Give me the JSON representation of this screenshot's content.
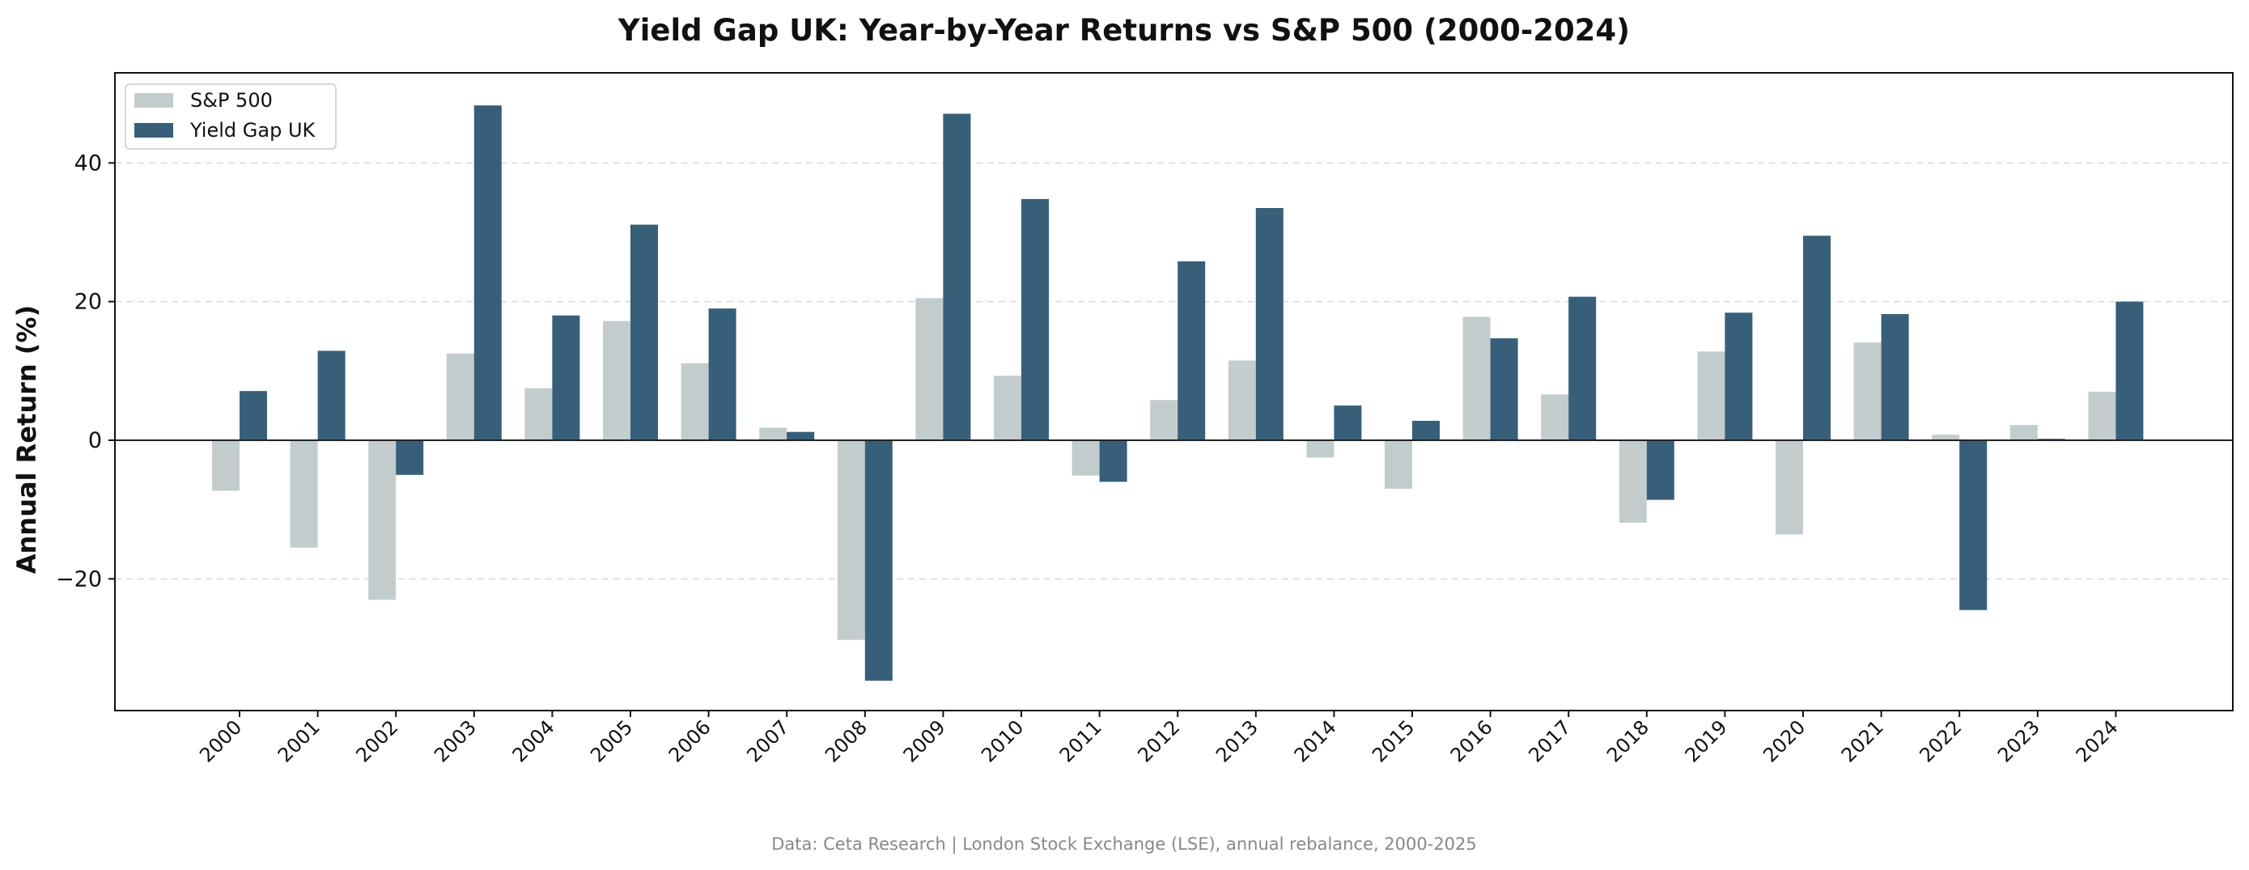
{
  "chart_data": {
    "type": "bar",
    "title": "Yield Gap UK: Year-by-Year Returns vs S&P 500 (2000-2024)",
    "xlabel": "",
    "ylabel": "Annual Return (%)",
    "ylim": [
      -39,
      53
    ],
    "yticks": [
      -20,
      0,
      20,
      40
    ],
    "ytick_labels": [
      "−20",
      "0",
      "20",
      "40"
    ],
    "grid": "horizontal dashed",
    "legend": "top-left",
    "categories": [
      "2000",
      "2001",
      "2002",
      "2003",
      "2004",
      "2005",
      "2006",
      "2007",
      "2008",
      "2009",
      "2010",
      "2011",
      "2012",
      "2013",
      "2014",
      "2015",
      "2016",
      "2017",
      "2018",
      "2019",
      "2020",
      "2021",
      "2022",
      "2023",
      "2024"
    ],
    "series": [
      {
        "name": "S&P 500",
        "color": "#c3cccd",
        "values": [
          -7.3,
          -15.5,
          -23.0,
          12.5,
          7.5,
          17.2,
          11.1,
          1.8,
          -28.8,
          20.5,
          9.3,
          -5.1,
          5.8,
          11.5,
          -2.5,
          -7.0,
          17.8,
          6.6,
          -11.9,
          12.8,
          -13.6,
          14.1,
          0.8,
          2.2,
          7.0
        ]
      },
      {
        "name": "Yield Gap UK",
        "color": "#375f79",
        "values": [
          7.1,
          12.9,
          -5.0,
          48.3,
          18.0,
          31.1,
          19.0,
          1.2,
          -34.7,
          47.1,
          34.8,
          -6.0,
          25.8,
          33.5,
          5.0,
          2.8,
          14.7,
          20.7,
          -8.6,
          18.4,
          29.5,
          18.2,
          -24.5,
          0.2,
          20.0
        ]
      }
    ],
    "source": "Data: Ceta Research | London Stock Exchange (LSE), annual rebalance, 2000-2025"
  }
}
